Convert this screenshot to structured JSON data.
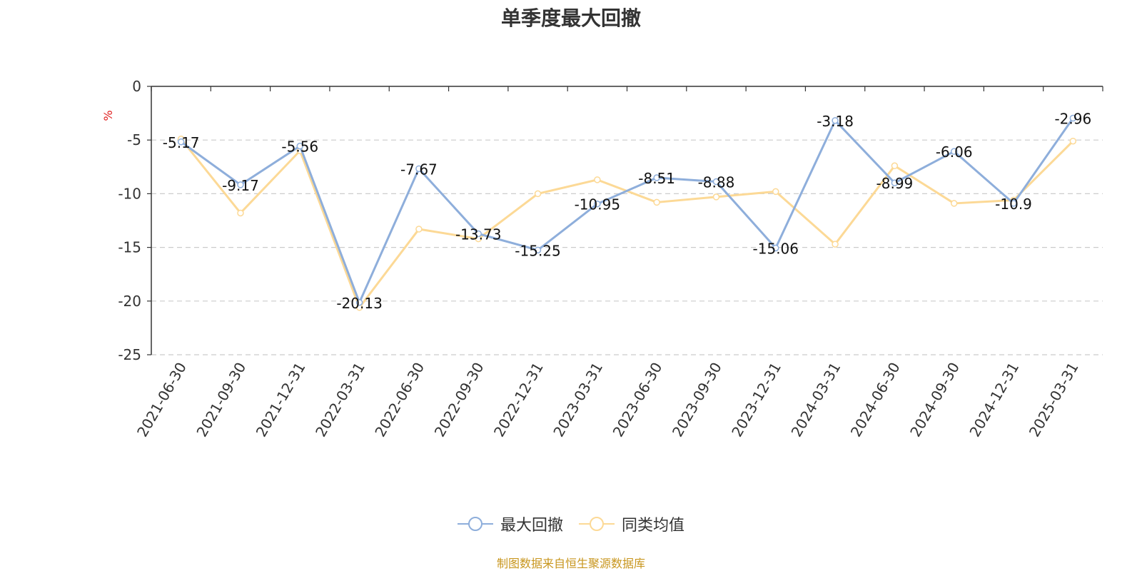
{
  "chart_data": {
    "type": "line",
    "title": "单季度最大回撤",
    "ylabel": "%",
    "categories": [
      "2021-06-30",
      "2021-09-30",
      "2021-12-31",
      "2022-03-31",
      "2022-06-30",
      "2022-09-30",
      "2022-12-31",
      "2023-03-31",
      "2023-06-30",
      "2023-09-30",
      "2023-12-31",
      "2024-03-31",
      "2024-06-30",
      "2024-09-30",
      "2024-12-31",
      "2025-03-31"
    ],
    "ylim": [
      -25,
      0
    ],
    "yticks": [
      0,
      -5,
      -10,
      -15,
      -20,
      -25
    ],
    "grid": true,
    "legend_position": "bottom",
    "series": [
      {
        "name": "最大回撤",
        "color": "#8eaedb",
        "values": [
          -5.17,
          -9.17,
          -5.56,
          -20.13,
          -7.67,
          -13.73,
          -15.25,
          -10.95,
          -8.51,
          -8.88,
          -15.06,
          -3.18,
          -8.99,
          -6.06,
          -10.9,
          -2.96
        ],
        "labels": [
          "-5.17",
          "-9.17",
          "-5.56",
          "-20.13",
          "-7.67",
          "-13.73",
          "-15.25",
          "-10.95",
          "-8.51",
          "-8.88",
          "-15.06",
          "-3.18",
          "-8.99",
          "-6.06",
          "-10.9",
          "-2.96"
        ]
      },
      {
        "name": "同类均值",
        "color": "#fcd996",
        "values": [
          -4.9,
          -11.8,
          -6.0,
          -20.6,
          -13.3,
          -14.2,
          -10.0,
          -8.7,
          -10.8,
          -10.3,
          -9.8,
          -14.7,
          -7.4,
          -10.9,
          -10.6,
          -5.1
        ]
      }
    ]
  },
  "footer": "制图数据来自恒生聚源数据库"
}
